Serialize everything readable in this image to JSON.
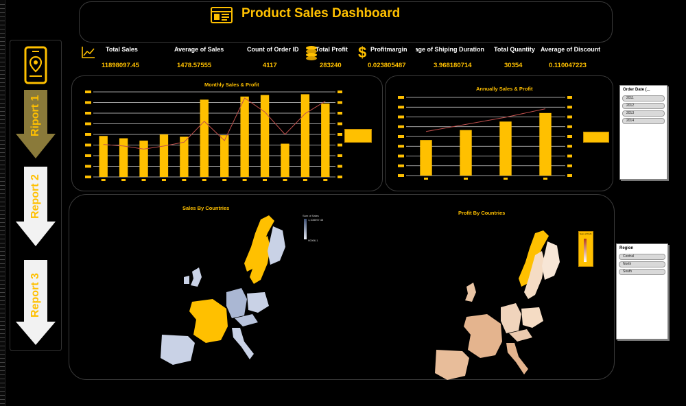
{
  "header": {
    "title": "Product Sales Dashboard"
  },
  "kpis": [
    {
      "label": "Total Sales",
      "value": "11898097.45"
    },
    {
      "label": "Average of Sales",
      "value": "1478.57555"
    },
    {
      "label": "Count of Order ID",
      "value": "4117"
    },
    {
      "label": "Total Profit",
      "value": "283240"
    },
    {
      "label": "Profitmargin",
      "value": "0.023805487"
    },
    {
      "label": "Average of Shiping Duration",
      "value": "3.968180714"
    },
    {
      "label": "Total Quantity",
      "value": "30354"
    },
    {
      "label": "Average of Discount",
      "value": "0.110047223"
    }
  ],
  "nav": {
    "items": [
      {
        "label": "Riport 1"
      },
      {
        "label": "Report 2"
      },
      {
        "label": "Report 3"
      }
    ]
  },
  "charts": {
    "monthly_title": "Monthly Sales & Profit",
    "annual_title": "Annually  Sales & Profit",
    "sales_map_title": "Sales By Countries",
    "profit_map_title": "Profit By Countries",
    "sales_map_legend_title": "Sum of Sales",
    "sales_map_legend_max": "1,108097.45",
    "sales_map_legend_min": "90006.1",
    "profit_map_legend_title": "Sum of Profit"
  },
  "chart_data": [
    {
      "type": "bar",
      "title": "Monthly Sales & Profit",
      "categories": [
        "1",
        "2",
        "3",
        "4",
        "5",
        "6",
        "7",
        "8",
        "9",
        "10",
        "11",
        "12"
      ],
      "series": [
        {
          "values": [
            0.53,
            0.5,
            0.47,
            0.55,
            0.52,
            1.0,
            0.54,
            1.04,
            1.06,
            0.43,
            1.07,
            0.95
          ]
        },
        {
          "values": [
            0.42,
            0.4,
            0.36,
            0.4,
            0.45,
            0.72,
            0.47,
            1.02,
            0.84,
            0.55,
            0.82,
            0.98
          ]
        }
      ],
      "colors": [
        "#FFC000",
        "#C0504D"
      ]
    },
    {
      "type": "bar",
      "title": "Annually  Sales & Profit",
      "categories": [
        "2011",
        "2012",
        "2013",
        "2014"
      ],
      "series": [
        {
          "values": [
            0.5,
            0.64,
            0.76,
            0.88
          ]
        },
        {
          "values": [
            0.62,
            0.72,
            0.82,
            0.94
          ]
        }
      ],
      "colors": [
        "#FFC000",
        "#C0504D"
      ]
    }
  ],
  "slicers": {
    "order_date": {
      "title": "Order Date (...",
      "items": [
        "2011",
        "2012",
        "2013",
        "2014"
      ]
    },
    "region": {
      "title": "Region",
      "items": [
        "Central",
        "North",
        "South"
      ]
    }
  }
}
